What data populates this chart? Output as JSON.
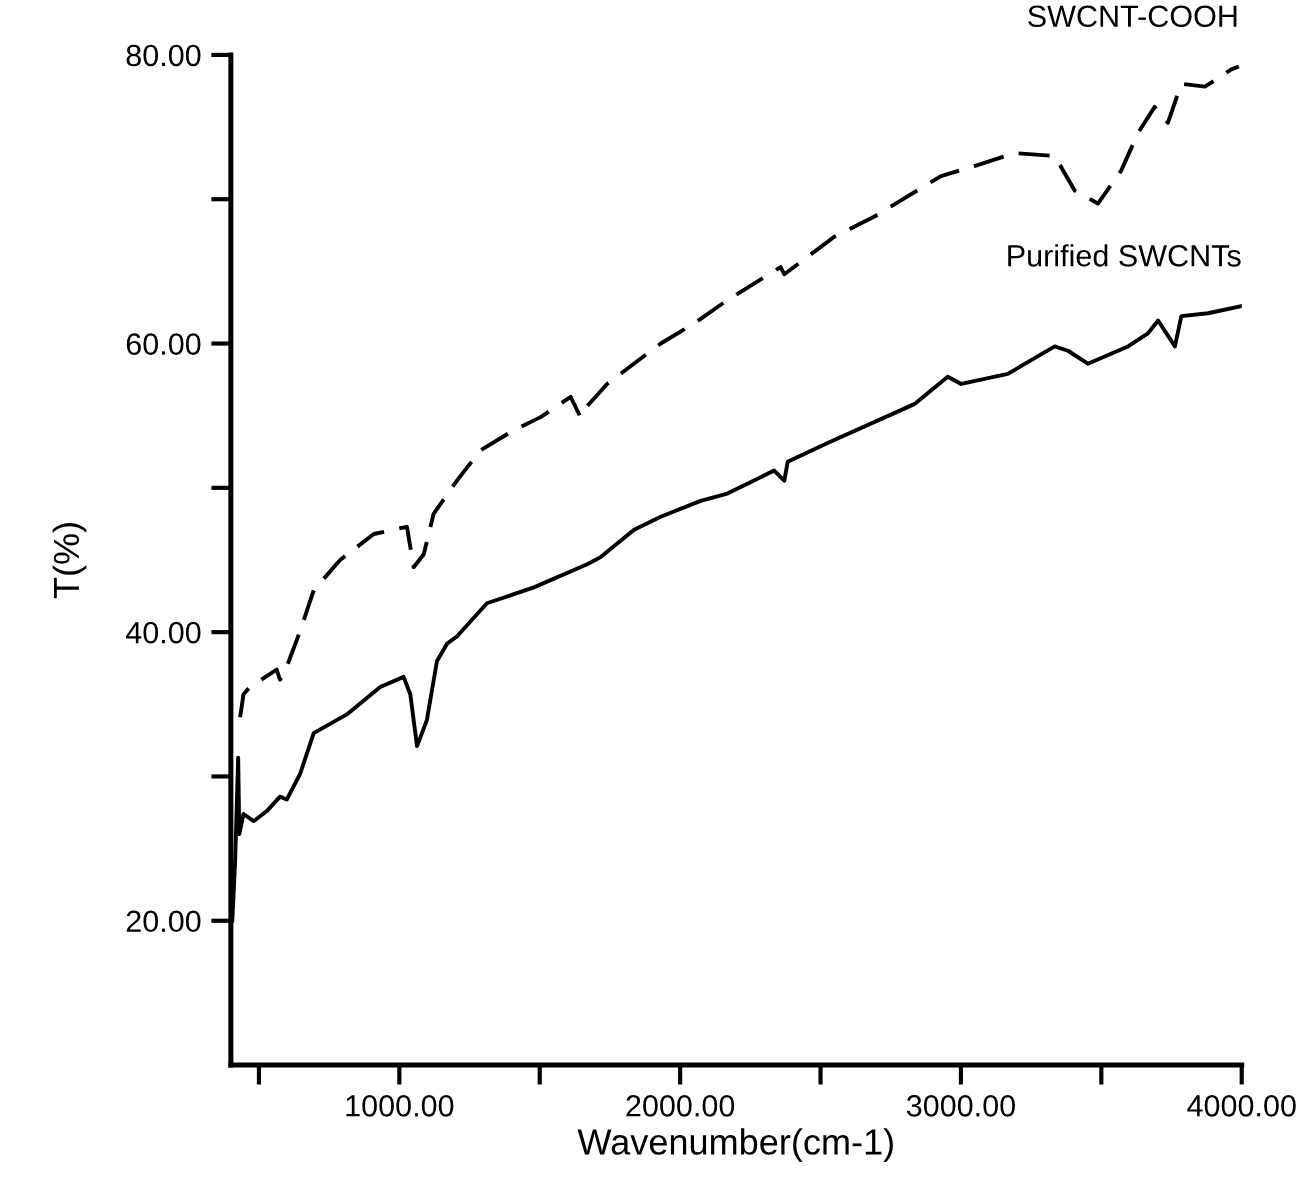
{
  "chart_data": {
    "type": "line",
    "xlabel": "Wavenumber(cm-1)",
    "ylabel": "T(%)",
    "xlim": [
      400,
      4000
    ],
    "ylim": [
      10,
      80
    ],
    "xticks": [
      {
        "value": 500,
        "label": null
      },
      {
        "value": 1000,
        "label": "1000.00"
      },
      {
        "value": 1500,
        "label": null
      },
      {
        "value": 2000,
        "label": "2000.00"
      },
      {
        "value": 2500,
        "label": null
      },
      {
        "value": 3000,
        "label": "3000.00"
      },
      {
        "value": 3500,
        "label": null
      },
      {
        "value": 4000,
        "label": "4000.00"
      }
    ],
    "yticks": [
      {
        "value": 20,
        "label": "20.00"
      },
      {
        "value": 30,
        "label": null
      },
      {
        "value": 40,
        "label": "40.00"
      },
      {
        "value": 50,
        "label": null
      },
      {
        "value": 60,
        "label": "60.00"
      },
      {
        "value": 70,
        "label": null
      },
      {
        "value": 80,
        "label": "80.00"
      }
    ],
    "grid": false,
    "legend": false,
    "series": [
      {
        "name": "SWCNT-COOH",
        "color": "#000000",
        "line_style": "dashed",
        "x": [
          433,
          445,
          468,
          563,
          575,
          599,
          647,
          695,
          789,
          909,
          1027,
          1051,
          1087,
          1122,
          1205,
          1289,
          1408,
          1503,
          1610,
          1645,
          1657,
          1740,
          1931,
          2050,
          2168,
          2358,
          2371,
          2549,
          2692,
          2810,
          2929,
          3048,
          3191,
          3334,
          3405,
          3488,
          3571,
          3631,
          3690,
          3737,
          3785,
          3869,
          3963,
          3990
        ],
        "values": [
          34.1,
          35.7,
          36.2,
          37.4,
          36.7,
          37.6,
          40.1,
          42.9,
          45.0,
          46.8,
          47.3,
          44.5,
          45.4,
          48.2,
          50.5,
          52.6,
          54.0,
          54.9,
          56.3,
          54.9,
          55.4,
          57.2,
          60.0,
          61.4,
          63.0,
          65.3,
          64.8,
          67.4,
          68.8,
          70.2,
          71.6,
          72.3,
          73.2,
          73.0,
          70.6,
          69.7,
          72.0,
          74.6,
          76.4,
          75.3,
          78.0,
          77.8,
          79.0,
          79.2
        ]
      },
      {
        "name": "Purified SWCNTs",
        "color": "#000000",
        "line_style": "solid",
        "x": [
          405,
          415,
          426,
          430,
          445,
          481,
          528,
          575,
          599,
          647,
          695,
          813,
          932,
          1015,
          1039,
          1063,
          1098,
          1134,
          1170,
          1205,
          1312,
          1479,
          1669,
          1717,
          1836,
          1931,
          2073,
          2168,
          2335,
          2371,
          2383,
          2525,
          2834,
          2953,
          3001,
          3167,
          3334,
          3381,
          3452,
          3595,
          3666,
          3702,
          3762,
          3785,
          3880,
          4000
        ],
        "values": [
          20.0,
          24.0,
          31.3,
          26.0,
          27.4,
          26.9,
          27.6,
          28.6,
          28.4,
          30.2,
          33.0,
          34.3,
          36.2,
          36.9,
          35.7,
          32.1,
          33.9,
          38.0,
          39.2,
          39.7,
          42.0,
          43.1,
          44.7,
          45.2,
          47.1,
          48.0,
          49.1,
          49.6,
          51.2,
          50.5,
          51.8,
          53.1,
          55.8,
          57.7,
          57.2,
          57.9,
          59.8,
          59.5,
          58.6,
          59.8,
          60.7,
          61.6,
          59.8,
          61.9,
          62.1,
          62.6
        ]
      }
    ]
  }
}
